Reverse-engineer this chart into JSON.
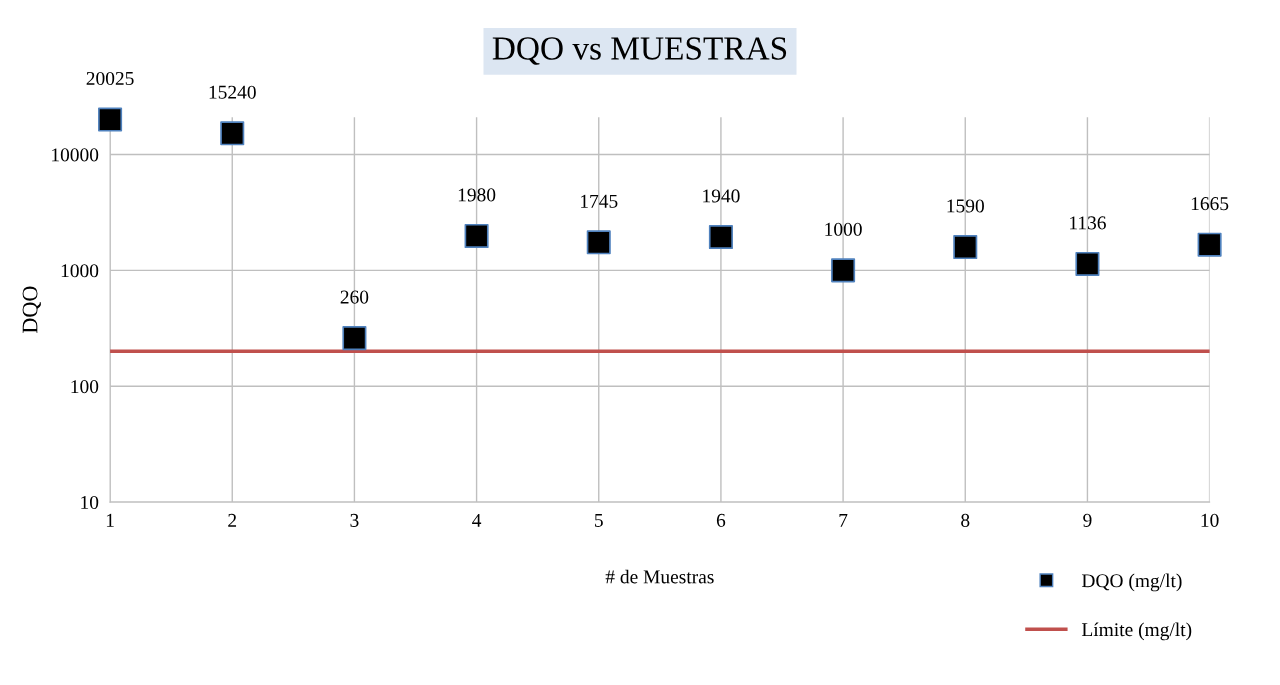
{
  "chart_data": {
    "type": "scatter",
    "title": "DQO vs MUESTRAS",
    "xlabel": "# de Muestras",
    "ylabel": "DQO",
    "x": [
      1,
      2,
      3,
      4,
      5,
      6,
      7,
      8,
      9,
      10
    ],
    "series": [
      {
        "name": "DQO (mg/lt)",
        "color": "#000000",
        "values": [
          20025,
          15240,
          260,
          1980,
          1745,
          1940,
          1000,
          1590,
          1136,
          1665
        ]
      }
    ],
    "data_labels": true,
    "marker": "square",
    "log": "y",
    "xlim": [
      1,
      10
    ],
    "xticks": [
      1,
      2,
      3,
      4,
      5,
      6,
      7,
      8,
      9,
      10
    ],
    "ylim": [
      10,
      21000
    ],
    "yticks": [
      10,
      100,
      1000,
      10000
    ],
    "ref_lines": [
      {
        "axis": "y",
        "value": 200,
        "label": "Límite (mg/lt)",
        "color": "#c0504d",
        "line_style": "solid"
      }
    ],
    "grid": true,
    "legend": "bottom right"
  }
}
